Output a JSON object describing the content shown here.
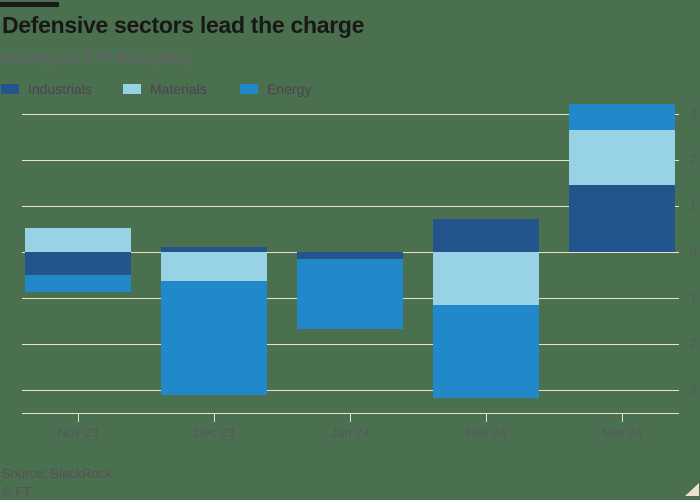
{
  "header": {
    "title": "Defensive sectors lead the charge",
    "subtitle": "Monthly net ETF flows ($bn)"
  },
  "legend": [
    {
      "label": "Industrials",
      "color": "#24548c"
    },
    {
      "label": "Materials",
      "color": "#97d3e4"
    },
    {
      "label": "Energy",
      "color": "#2189c9"
    }
  ],
  "chart_data": {
    "type": "bar",
    "stacked": true,
    "title": "Defensive sectors lead the charge",
    "subtitle": "Monthly net ETF flows ($bn)",
    "categories": [
      "Nov 23",
      "Dec 23",
      "Jan 24",
      "Feb 24",
      "Mar 24"
    ],
    "series": [
      {
        "name": "Industrials",
        "color": "#24548c",
        "values": [
          -0.5,
          0.1,
          -0.15,
          0.71,
          1.45
        ]
      },
      {
        "name": "Materials",
        "color": "#97d3e4",
        "values": [
          0.53,
          -0.64,
          0,
          -1.16,
          1.21
        ]
      },
      {
        "name": "Energy",
        "color": "#2189c9",
        "values": [
          -0.36,
          -2.47,
          -1.52,
          -2.02,
          0.56
        ]
      }
    ],
    "yticks": [
      3,
      2,
      1,
      0,
      -1,
      -2,
      -3
    ],
    "ylim": [
      -3.5,
      3.3
    ],
    "xlabel": "",
    "ylabel": "",
    "grid": true,
    "legend_position": "top-left",
    "y_axis_side": "right"
  },
  "footer": {
    "source": "Source: BlackRock",
    "copyright": "© FT"
  },
  "colors": {
    "background": "#4a7050",
    "gridline": "#e9e2d0",
    "tab": "#1a1a1a",
    "title_text": "#181815",
    "subtitle_text": "#675f6b",
    "legend_text": "#4a444e",
    "axis_text": "#5b5560",
    "source_text": "#56505a",
    "industrials": "#24548c",
    "materials": "#97d3e4",
    "energy": "#2189c9"
  }
}
